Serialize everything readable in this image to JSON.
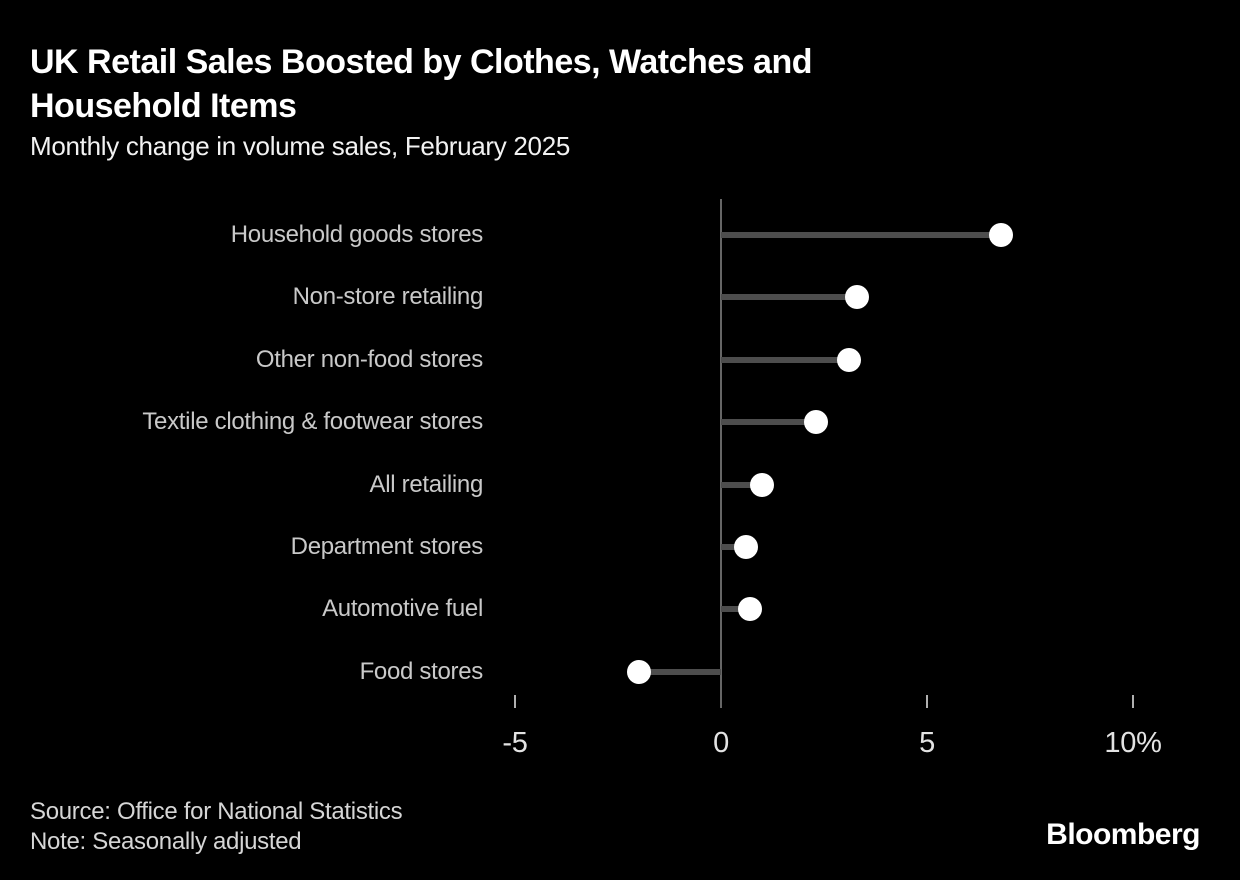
{
  "header": {
    "title": "UK Retail Sales Boosted by Clothes, Watches and Household Items",
    "subtitle": "Monthly change in volume sales, February 2025"
  },
  "chart_data": {
    "type": "bar",
    "style": "lollipop",
    "orientation": "horizontal",
    "title": "UK Retail Sales Boosted by Clothes, Watches and Household Items",
    "subtitle": "Monthly change in volume sales, February 2025",
    "categories": [
      "Household goods stores",
      "Non-store retailing",
      "Other non-food stores",
      "Textile clothing & footwear stores",
      "All retailing",
      "Department stores",
      "Automotive fuel",
      "Food stores"
    ],
    "values": [
      6.8,
      3.3,
      3.1,
      2.3,
      1.0,
      0.6,
      0.7,
      -2.0
    ],
    "unit": "%",
    "xlabel": "",
    "ylabel": "",
    "xlim": [
      -5,
      10
    ],
    "xticks": [
      -5,
      0,
      5,
      10
    ],
    "xtick_labels": [
      "-5",
      "0",
      "5",
      "10%"
    ],
    "grid": false,
    "legend": false,
    "marker_color": "#ffffff",
    "stem_color": "#4d4d4d"
  },
  "footer": {
    "source": "Source: Office for National Statistics",
    "note": "Note: Seasonally adjusted",
    "brand": "Bloomberg"
  },
  "colors": {
    "background": "#000000",
    "title": "#ffffff",
    "subtitle": "#f2f2f2",
    "category_label": "#c9c9c9",
    "stem": "#4d4d4d",
    "axis_line": "#666666",
    "tick": "#b0b0b0",
    "tick_label": "#e3e3e3",
    "dot": "#ffffff",
    "footer_text": "#d6d6d6",
    "brand": "#ffffff"
  }
}
